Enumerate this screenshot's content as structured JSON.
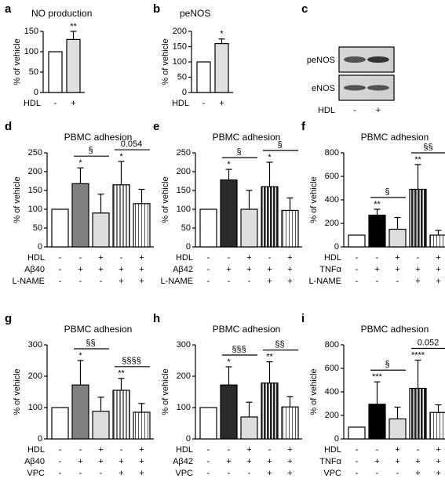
{
  "chart_data": [
    {
      "type": "bar",
      "panel": "a",
      "title": "NO production",
      "ylabel": "% of vehicle",
      "ylim": [
        0,
        150
      ],
      "yticks": [
        0,
        50,
        100,
        150
      ],
      "values": [
        100,
        130
      ],
      "errors": [
        0,
        20
      ],
      "fills": [
        "#ffffff",
        "#e0e0e0"
      ],
      "stars": [
        null,
        "**"
      ],
      "conditions": [
        {
          "label": "HDL",
          "marks": [
            "-",
            "+"
          ]
        }
      ],
      "brackets": []
    },
    {
      "type": "bar",
      "panel": "b",
      "title": "peNOS",
      "ylabel": "% of vehicle",
      "ylim": [
        0,
        200
      ],
      "yticks": [
        0,
        50,
        100,
        150,
        200
      ],
      "values": [
        100,
        160
      ],
      "errors": [
        0,
        15
      ],
      "fills": [
        "#ffffff",
        "#e0e0e0"
      ],
      "stars": [
        null,
        "*"
      ],
      "conditions": [
        {
          "label": "HDL",
          "marks": [
            "-",
            "+"
          ]
        }
      ],
      "brackets": []
    },
    {
      "type": "blot",
      "panel": "c",
      "bands": [
        "peNOS",
        "eNOS"
      ],
      "conditions": [
        {
          "label": "HDL",
          "marks": [
            "-",
            "+"
          ]
        }
      ]
    },
    {
      "type": "bar",
      "panel": "d",
      "title": "PBMC adhesion",
      "ylabel": "% of vehicle",
      "ylim": [
        0,
        250
      ],
      "yticks": [
        0,
        50,
        100,
        150,
        200,
        250
      ],
      "values": [
        100,
        168,
        90,
        165,
        115
      ],
      "errors": [
        0,
        42,
        50,
        62,
        38
      ],
      "fills": [
        "#ffffff",
        "#808080",
        "#dddddd",
        "url(#vs-gray)",
        "url(#vs-white)"
      ],
      "stars": [
        null,
        "*",
        null,
        "*",
        null
      ],
      "conditions": [
        {
          "label": "HDL",
          "marks": [
            "-",
            "-",
            "+",
            "-",
            "+"
          ]
        },
        {
          "label": "Aβ40",
          "marks": [
            "-",
            "+",
            "+",
            "+",
            "+"
          ]
        },
        {
          "label": "L-NAME",
          "marks": [
            "-",
            "-",
            "-",
            "+",
            "+"
          ]
        }
      ],
      "brackets": [
        {
          "from": 1,
          "to": 2,
          "label": "§"
        },
        {
          "from": 3,
          "to": 4,
          "label": "0.054"
        }
      ]
    },
    {
      "type": "bar",
      "panel": "e",
      "title": "PBMC adhesion",
      "ylabel": "% of vehicle",
      "ylim": [
        0,
        250
      ],
      "yticks": [
        0,
        50,
        100,
        150,
        200,
        250
      ],
      "values": [
        100,
        178,
        100,
        160,
        97
      ],
      "errors": [
        0,
        28,
        50,
        65,
        33
      ],
      "fills": [
        "#ffffff",
        "#2a2a2a",
        "#dddddd",
        "url(#vs-dark)",
        "url(#vs-white)"
      ],
      "stars": [
        null,
        "*",
        null,
        "*",
        null
      ],
      "conditions": [
        {
          "label": "HDL",
          "marks": [
            "-",
            "-",
            "+",
            "-",
            "+"
          ]
        },
        {
          "label": "Aβ42",
          "marks": [
            "-",
            "+",
            "+",
            "+",
            "+"
          ]
        },
        {
          "label": "L-NAME",
          "marks": [
            "-",
            "-",
            "-",
            "+",
            "+"
          ]
        }
      ],
      "brackets": [
        {
          "from": 1,
          "to": 2,
          "label": "§"
        },
        {
          "from": 3,
          "to": 4,
          "label": "§"
        }
      ]
    },
    {
      "type": "bar",
      "panel": "f",
      "title": "PBMC adhesion",
      "ylabel": "% of vehicle",
      "ylim": [
        0,
        800
      ],
      "yticks": [
        0,
        200,
        400,
        600,
        800
      ],
      "values": [
        100,
        270,
        150,
        490,
        100
      ],
      "errors": [
        0,
        50,
        100,
        210,
        40
      ],
      "fills": [
        "#ffffff",
        "#000000",
        "#dddddd",
        "url(#vs-dark)",
        "url(#vs-white)"
      ],
      "stars": [
        null,
        "**",
        null,
        "**",
        null
      ],
      "conditions": [
        {
          "label": "HDL",
          "marks": [
            "-",
            "-",
            "+",
            "-",
            "+"
          ]
        },
        {
          "label": "TNFα",
          "marks": [
            "-",
            "+",
            "+",
            "+",
            "+"
          ]
        },
        {
          "label": "L-NAME",
          "marks": [
            "-",
            "-",
            "-",
            "+",
            "+"
          ]
        }
      ],
      "brackets": [
        {
          "from": 1,
          "to": 2,
          "label": "§"
        },
        {
          "from": 3,
          "to": 4,
          "label": "§§"
        }
      ]
    },
    {
      "type": "bar",
      "panel": "g",
      "title": "PBMC adhesion",
      "ylabel": "% of vehicle",
      "ylim": [
        0,
        300
      ],
      "yticks": [
        0,
        100,
        200,
        300
      ],
      "values": [
        100,
        172,
        88,
        155,
        85
      ],
      "errors": [
        0,
        78,
        45,
        38,
        28
      ],
      "fills": [
        "#ffffff",
        "#808080",
        "#dddddd",
        "url(#vs-gray)",
        "url(#vs-white)"
      ],
      "stars": [
        null,
        "*",
        null,
        "**",
        null
      ],
      "conditions": [
        {
          "label": "HDL",
          "marks": [
            "-",
            "-",
            "+",
            "-",
            "+"
          ]
        },
        {
          "label": "Aβ40",
          "marks": [
            "-",
            "+",
            "+",
            "+",
            "+"
          ]
        },
        {
          "label": "VPC",
          "marks": [
            "-",
            "-",
            "-",
            "+",
            "+"
          ]
        }
      ],
      "brackets": [
        {
          "from": 1,
          "to": 2,
          "label": "§§"
        },
        {
          "from": 3,
          "to": 4,
          "label": "§§§§"
        }
      ]
    },
    {
      "type": "bar",
      "panel": "h",
      "title": "PBMC adhesion",
      "ylabel": "% of vehicle",
      "ylim": [
        0,
        300
      ],
      "yticks": [
        0,
        100,
        200,
        300
      ],
      "values": [
        100,
        172,
        70,
        178,
        102
      ],
      "errors": [
        0,
        58,
        47,
        68,
        33
      ],
      "fills": [
        "#ffffff",
        "#2a2a2a",
        "#dddddd",
        "url(#vs-dark)",
        "url(#vs-white)"
      ],
      "stars": [
        null,
        "*",
        null,
        "**",
        null
      ],
      "conditions": [
        {
          "label": "HDL",
          "marks": [
            "-",
            "-",
            "+",
            "-",
            "+"
          ]
        },
        {
          "label": "Aβ42",
          "marks": [
            "-",
            "+",
            "+",
            "+",
            "+"
          ]
        },
        {
          "label": "VPC",
          "marks": [
            "-",
            "-",
            "-",
            "+",
            "+"
          ]
        }
      ],
      "brackets": [
        {
          "from": 1,
          "to": 2,
          "label": "§§§"
        },
        {
          "from": 3,
          "to": 4,
          "label": "§§"
        }
      ]
    },
    {
      "type": "bar",
      "panel": "i",
      "title": "PBMC adhesion",
      "ylabel": "% of vehicle",
      "ylim": [
        0,
        800
      ],
      "yticks": [
        0,
        200,
        400,
        600,
        800
      ],
      "values": [
        100,
        295,
        170,
        430,
        225
      ],
      "errors": [
        0,
        190,
        100,
        240,
        65
      ],
      "fills": [
        "#ffffff",
        "#000000",
        "#dddddd",
        "url(#vs-dark)",
        "url(#vs-white)"
      ],
      "stars": [
        null,
        "***",
        null,
        "****",
        null
      ],
      "conditions": [
        {
          "label": "HDL",
          "marks": [
            "-",
            "-",
            "+",
            "-",
            "+"
          ]
        },
        {
          "label": "TNFα",
          "marks": [
            "-",
            "+",
            "+",
            "+",
            "+"
          ]
        },
        {
          "label": "VPC",
          "marks": [
            "-",
            "-",
            "-",
            "+",
            "+"
          ]
        }
      ],
      "brackets": [
        {
          "from": 1,
          "to": 2,
          "label": "§"
        },
        {
          "from": 3,
          "to": 4,
          "label": "0.052"
        }
      ]
    }
  ]
}
